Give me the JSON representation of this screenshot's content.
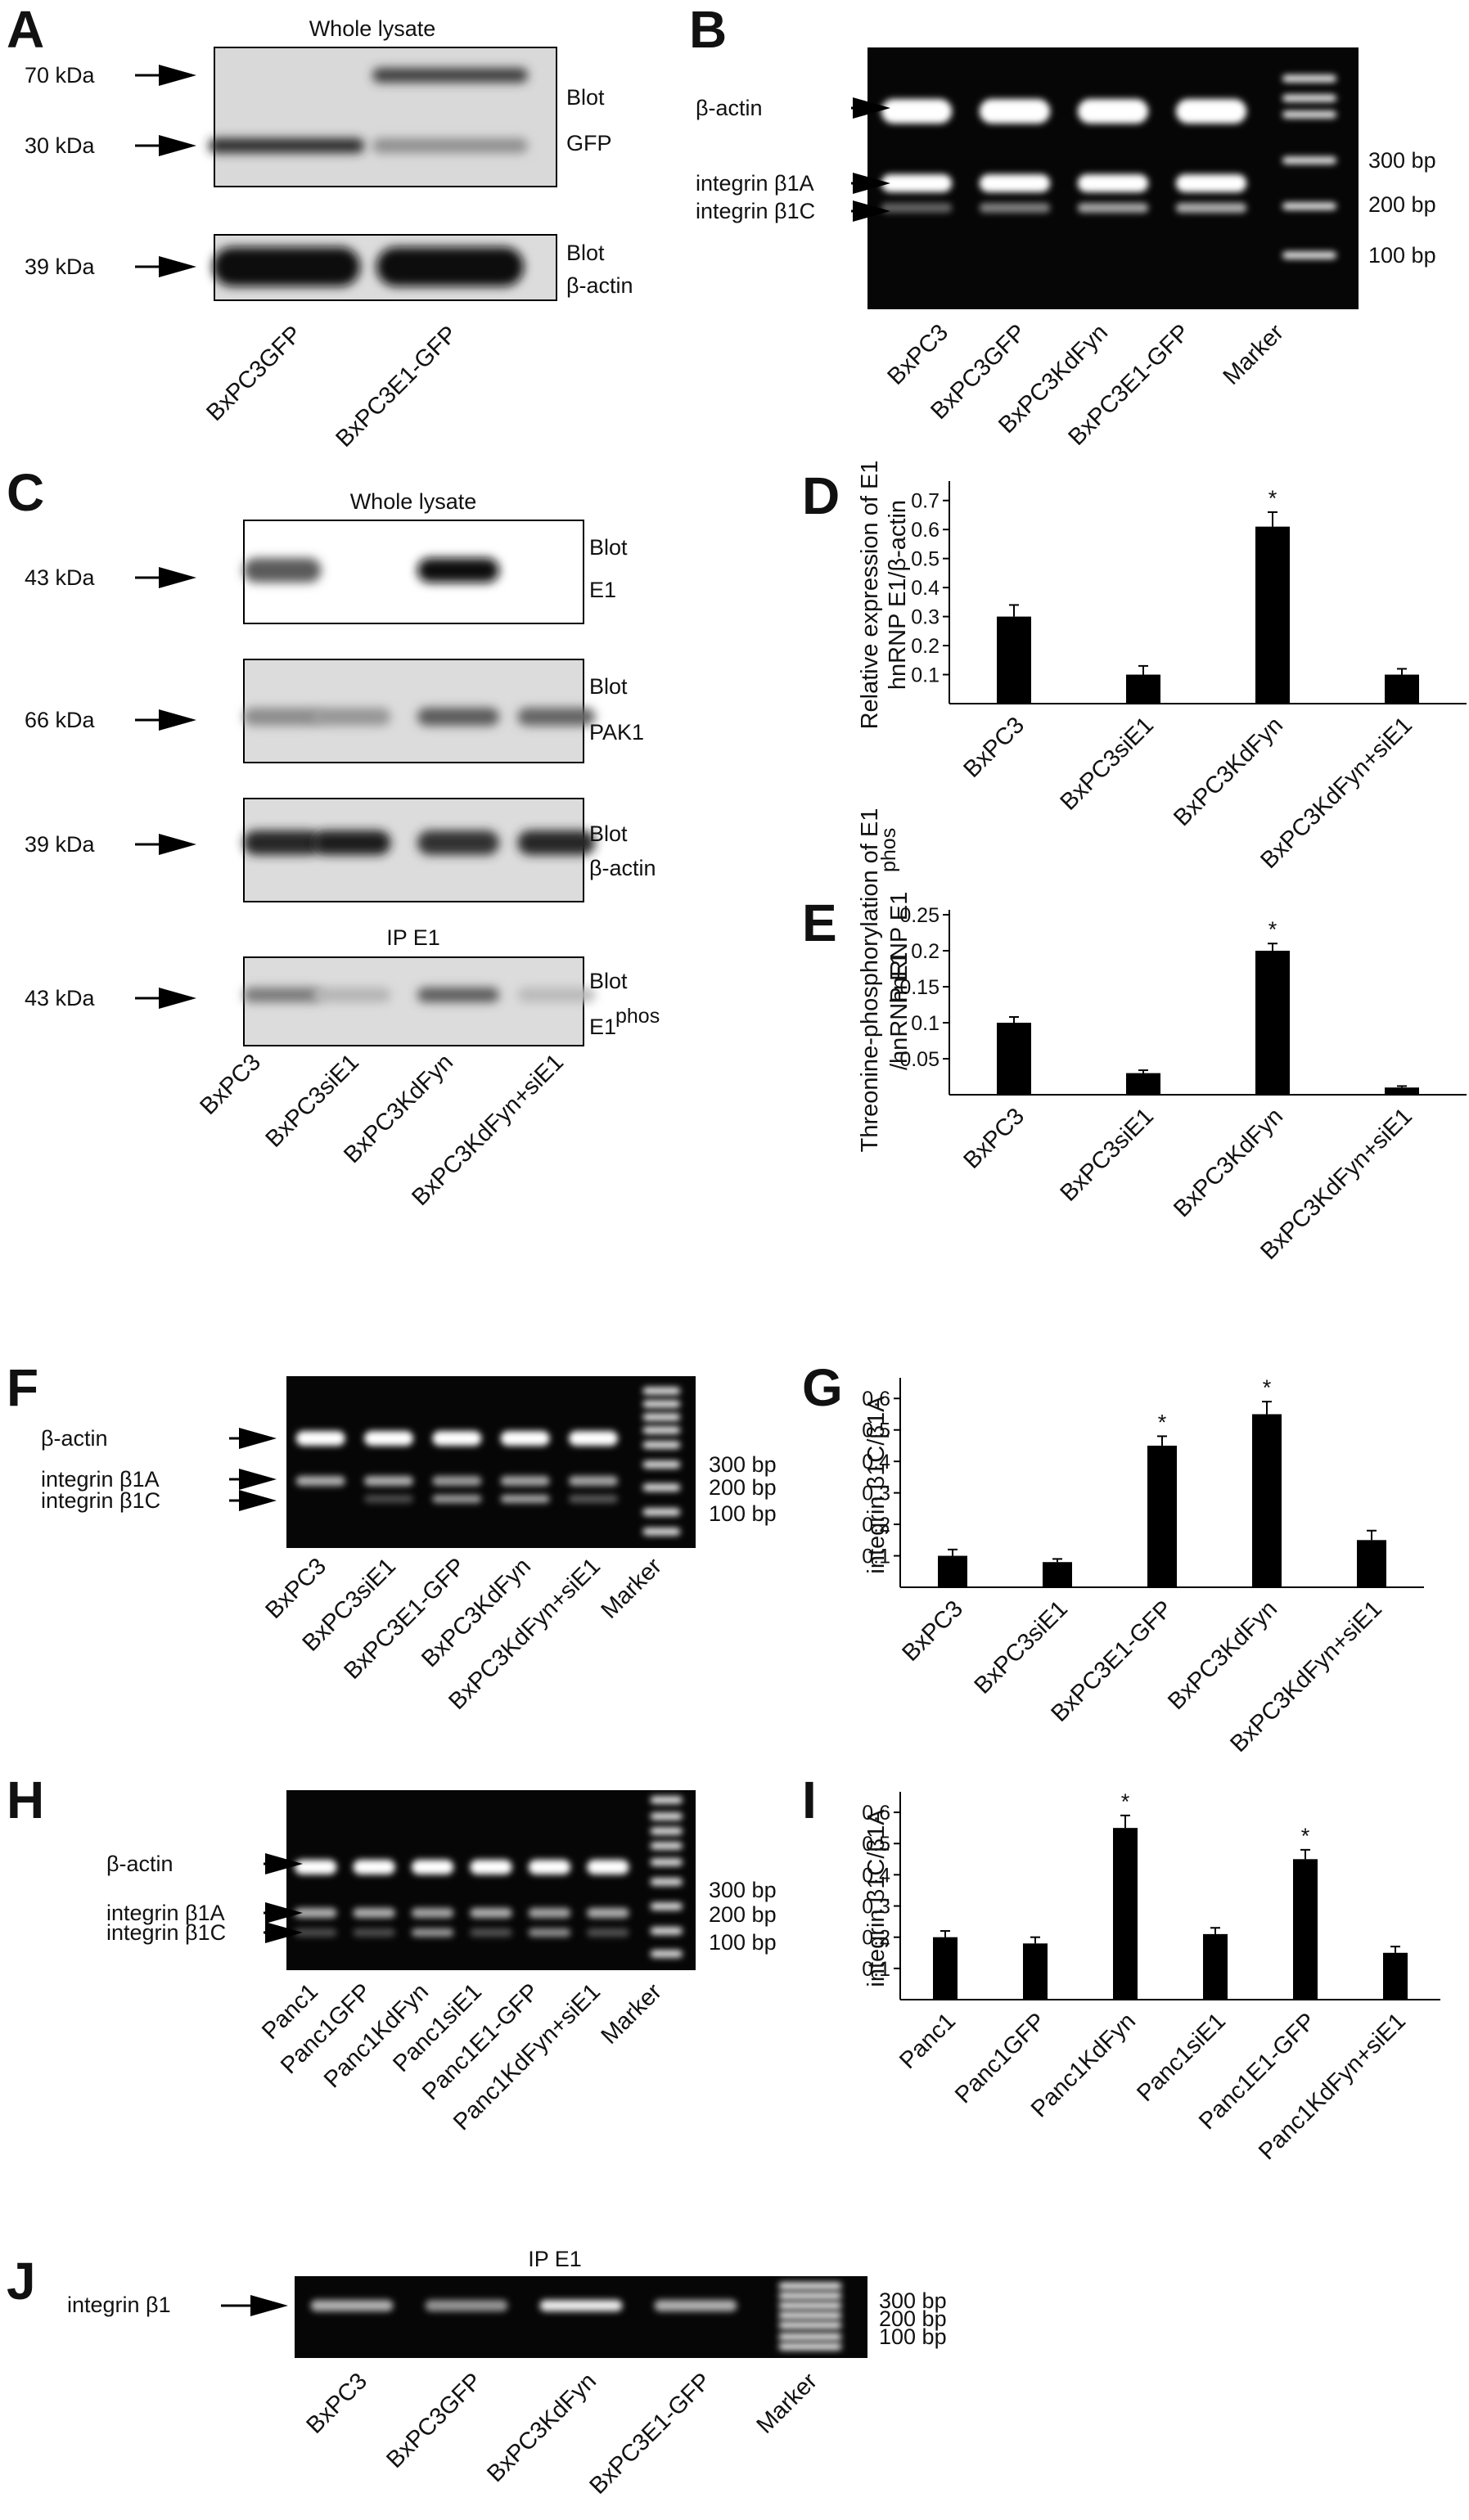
{
  "panels": {
    "A": {
      "letter": "A",
      "title": "Whole lysate",
      "markers": [
        "70 kDa",
        "30 kDa",
        "39 kDa"
      ],
      "blots": [
        [
          "Blot",
          "GFP"
        ],
        [
          "Blot",
          "β-actin"
        ]
      ],
      "lanes": [
        "BxPC3GFP",
        "BxPC3E1-GFP"
      ],
      "bands": [
        {
          "row": 1,
          "intensity": [
            0.05,
            0.75
          ]
        },
        {
          "row": 2,
          "intensity": [
            0.85,
            0.35
          ]
        },
        {
          "row": 3,
          "intensity": [
            1.0,
            1.0
          ]
        }
      ]
    },
    "B": {
      "letter": "B",
      "labels": [
        "β-actin",
        "integrin β1A",
        "integrin β1C"
      ],
      "sizes": [
        "300 bp",
        "200 bp",
        "100 bp"
      ],
      "lanes": [
        "BxPC3",
        "BxPC3GFP",
        "BxPC3KdFyn",
        "BxPC3E1-GFP",
        "Marker"
      ]
    },
    "C": {
      "letter": "C",
      "title": "Whole lysate",
      "ip_title": "IP E1",
      "markers": [
        "43 kDa",
        "66 kDa",
        "39 kDa",
        "43 kDa"
      ],
      "blots": [
        [
          "Blot",
          "E1"
        ],
        [
          "Blot",
          "PAK1"
        ],
        [
          "Blot",
          "β-actin"
        ],
        [
          "Blot",
          "E1",
          "phos"
        ]
      ],
      "lanes": [
        "BxPC3",
        "BxPC3siE1",
        "BxPC3KdFyn",
        "BxPC3KdFyn+siE1"
      ]
    },
    "F": {
      "letter": "F",
      "labels": [
        "β-actin",
        "integrin β1A",
        "integrin β1C"
      ],
      "sizes": [
        "300 bp",
        "200 bp",
        "100 bp"
      ],
      "lanes": [
        "BxPC3",
        "BxPC3siE1",
        "BxPC3E1-GFP",
        "BxPC3KdFyn",
        "BxPC3KdFyn+siE1",
        "Marker"
      ]
    },
    "H": {
      "letter": "H",
      "labels": [
        "β-actin",
        "integrin β1A",
        "integrin β1C"
      ],
      "sizes": [
        "300 bp",
        "200 bp",
        "100 bp"
      ],
      "lanes": [
        "Panc1",
        "Panc1GFP",
        "Panc1KdFyn",
        "Panc1siE1",
        "Panc1E1-GFP",
        "Panc1KdFyn+siE1",
        "Marker"
      ]
    },
    "J": {
      "letter": "J",
      "title": "IP E1",
      "labels": [
        "integrin β1"
      ],
      "sizes": [
        "300 bp",
        "200 bp",
        "100 bp"
      ],
      "lanes": [
        "BxPC3",
        "BxPC3GFP",
        "BxPC3KdFyn",
        "BxPC3E1-GFP",
        "Marker"
      ]
    }
  },
  "chart_data": [
    {
      "panel": "D",
      "type": "bar",
      "categories": [
        "BxPC3",
        "BxPC3siE1",
        "BxPC3KdFyn",
        "BxPC3KdFyn+siE1"
      ],
      "values": [
        0.3,
        0.1,
        0.61,
        0.1
      ],
      "errors": [
        0.04,
        0.03,
        0.05,
        0.02
      ],
      "significant": [
        false,
        false,
        true,
        false
      ],
      "ylabel": [
        "Relative expression of E1",
        "hnRNP E1/β-actin"
      ],
      "yticks": [
        "0.1",
        "0.2",
        "0.3",
        "0.4",
        "0.5",
        "0.6",
        "0.7"
      ],
      "ylim": [
        0,
        0.75
      ]
    },
    {
      "panel": "E",
      "type": "bar",
      "categories": [
        "BxPC3",
        "BxPC3siE1",
        "BxPC3KdFyn",
        "BxPC3KdFyn+siE1"
      ],
      "values": [
        0.1,
        0.03,
        0.2,
        0.01
      ],
      "errors": [
        0.008,
        0.004,
        0.01,
        0.002
      ],
      "significant": [
        false,
        false,
        true,
        false
      ],
      "ylabel": [
        "Threonine-phosphorylation of E1",
        "hnRNP E1",
        "phos",
        "/hnRNP E1"
      ],
      "yticks": [
        "0.05",
        "0.1",
        "0.15",
        "0.2",
        "0.25"
      ],
      "ylim": [
        0,
        0.25
      ]
    },
    {
      "panel": "G",
      "type": "bar",
      "categories": [
        "BxPC3",
        "BxPC3siE1",
        "BxPC3E1-GFP",
        "BxPC3KdFyn",
        "BxPC3KdFyn+siE1"
      ],
      "values": [
        0.1,
        0.08,
        0.45,
        0.55,
        0.15
      ],
      "errors": [
        0.02,
        0.01,
        0.03,
        0.04,
        0.03
      ],
      "significant": [
        false,
        false,
        true,
        true,
        false
      ],
      "ylabel": [
        "integrin β1C/β1A"
      ],
      "yticks": [
        "0.1",
        "0.2",
        "0.3",
        "0.4",
        "0.5",
        "0.6"
      ],
      "ylim": [
        0,
        0.65
      ]
    },
    {
      "panel": "I",
      "type": "bar",
      "categories": [
        "Panc1",
        "Panc1GFP",
        "Panc1KdFyn",
        "Panc1siE1",
        "Panc1E1-GFP",
        "Panc1KdFyn+siE1"
      ],
      "values": [
        0.2,
        0.18,
        0.55,
        0.21,
        0.45,
        0.15
      ],
      "errors": [
        0.02,
        0.02,
        0.04,
        0.02,
        0.03,
        0.02
      ],
      "significant": [
        false,
        false,
        true,
        false,
        true,
        false
      ],
      "ylabel": [
        "integrin β1C/β1A"
      ],
      "yticks": [
        "0.1",
        "0.2",
        "0.3",
        "0.4",
        "0.5",
        "0.6"
      ],
      "ylim": [
        0,
        0.65
      ]
    }
  ]
}
